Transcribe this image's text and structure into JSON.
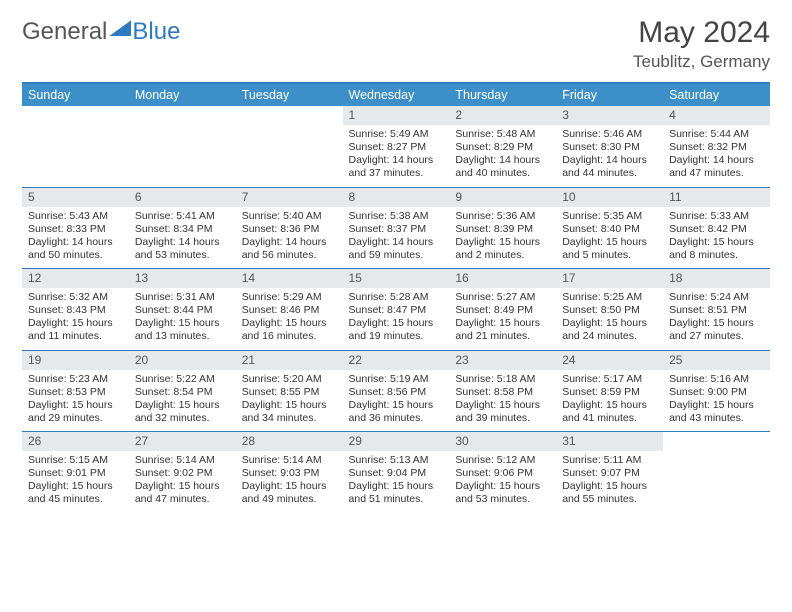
{
  "brand": {
    "part1": "General",
    "part2": "Blue"
  },
  "title": "May 2024",
  "location": "Teublitz, Germany",
  "colors": {
    "accent": "#3d8fc9",
    "rule": "#2f7bbf",
    "daybg": "#e6e9ec",
    "text": "#333333",
    "bg": "#ffffff"
  },
  "weekdays": [
    "Sunday",
    "Monday",
    "Tuesday",
    "Wednesday",
    "Thursday",
    "Friday",
    "Saturday"
  ],
  "weeks": [
    [
      null,
      null,
      null,
      {
        "n": "1",
        "sunrise": "5:49 AM",
        "sunset": "8:27 PM",
        "daylight": "14 hours and 37 minutes."
      },
      {
        "n": "2",
        "sunrise": "5:48 AM",
        "sunset": "8:29 PM",
        "daylight": "14 hours and 40 minutes."
      },
      {
        "n": "3",
        "sunrise": "5:46 AM",
        "sunset": "8:30 PM",
        "daylight": "14 hours and 44 minutes."
      },
      {
        "n": "4",
        "sunrise": "5:44 AM",
        "sunset": "8:32 PM",
        "daylight": "14 hours and 47 minutes."
      }
    ],
    [
      {
        "n": "5",
        "sunrise": "5:43 AM",
        "sunset": "8:33 PM",
        "daylight": "14 hours and 50 minutes."
      },
      {
        "n": "6",
        "sunrise": "5:41 AM",
        "sunset": "8:34 PM",
        "daylight": "14 hours and 53 minutes."
      },
      {
        "n": "7",
        "sunrise": "5:40 AM",
        "sunset": "8:36 PM",
        "daylight": "14 hours and 56 minutes."
      },
      {
        "n": "8",
        "sunrise": "5:38 AM",
        "sunset": "8:37 PM",
        "daylight": "14 hours and 59 minutes."
      },
      {
        "n": "9",
        "sunrise": "5:36 AM",
        "sunset": "8:39 PM",
        "daylight": "15 hours and 2 minutes."
      },
      {
        "n": "10",
        "sunrise": "5:35 AM",
        "sunset": "8:40 PM",
        "daylight": "15 hours and 5 minutes."
      },
      {
        "n": "11",
        "sunrise": "5:33 AM",
        "sunset": "8:42 PM",
        "daylight": "15 hours and 8 minutes."
      }
    ],
    [
      {
        "n": "12",
        "sunrise": "5:32 AM",
        "sunset": "8:43 PM",
        "daylight": "15 hours and 11 minutes."
      },
      {
        "n": "13",
        "sunrise": "5:31 AM",
        "sunset": "8:44 PM",
        "daylight": "15 hours and 13 minutes."
      },
      {
        "n": "14",
        "sunrise": "5:29 AM",
        "sunset": "8:46 PM",
        "daylight": "15 hours and 16 minutes."
      },
      {
        "n": "15",
        "sunrise": "5:28 AM",
        "sunset": "8:47 PM",
        "daylight": "15 hours and 19 minutes."
      },
      {
        "n": "16",
        "sunrise": "5:27 AM",
        "sunset": "8:49 PM",
        "daylight": "15 hours and 21 minutes."
      },
      {
        "n": "17",
        "sunrise": "5:25 AM",
        "sunset": "8:50 PM",
        "daylight": "15 hours and 24 minutes."
      },
      {
        "n": "18",
        "sunrise": "5:24 AM",
        "sunset": "8:51 PM",
        "daylight": "15 hours and 27 minutes."
      }
    ],
    [
      {
        "n": "19",
        "sunrise": "5:23 AM",
        "sunset": "8:53 PM",
        "daylight": "15 hours and 29 minutes."
      },
      {
        "n": "20",
        "sunrise": "5:22 AM",
        "sunset": "8:54 PM",
        "daylight": "15 hours and 32 minutes."
      },
      {
        "n": "21",
        "sunrise": "5:20 AM",
        "sunset": "8:55 PM",
        "daylight": "15 hours and 34 minutes."
      },
      {
        "n": "22",
        "sunrise": "5:19 AM",
        "sunset": "8:56 PM",
        "daylight": "15 hours and 36 minutes."
      },
      {
        "n": "23",
        "sunrise": "5:18 AM",
        "sunset": "8:58 PM",
        "daylight": "15 hours and 39 minutes."
      },
      {
        "n": "24",
        "sunrise": "5:17 AM",
        "sunset": "8:59 PM",
        "daylight": "15 hours and 41 minutes."
      },
      {
        "n": "25",
        "sunrise": "5:16 AM",
        "sunset": "9:00 PM",
        "daylight": "15 hours and 43 minutes."
      }
    ],
    [
      {
        "n": "26",
        "sunrise": "5:15 AM",
        "sunset": "9:01 PM",
        "daylight": "15 hours and 45 minutes."
      },
      {
        "n": "27",
        "sunrise": "5:14 AM",
        "sunset": "9:02 PM",
        "daylight": "15 hours and 47 minutes."
      },
      {
        "n": "28",
        "sunrise": "5:14 AM",
        "sunset": "9:03 PM",
        "daylight": "15 hours and 49 minutes."
      },
      {
        "n": "29",
        "sunrise": "5:13 AM",
        "sunset": "9:04 PM",
        "daylight": "15 hours and 51 minutes."
      },
      {
        "n": "30",
        "sunrise": "5:12 AM",
        "sunset": "9:06 PM",
        "daylight": "15 hours and 53 minutes."
      },
      {
        "n": "31",
        "sunrise": "5:11 AM",
        "sunset": "9:07 PM",
        "daylight": "15 hours and 55 minutes."
      },
      null
    ]
  ],
  "labels": {
    "sunrise": "Sunrise:",
    "sunset": "Sunset:",
    "daylight": "Daylight:"
  }
}
